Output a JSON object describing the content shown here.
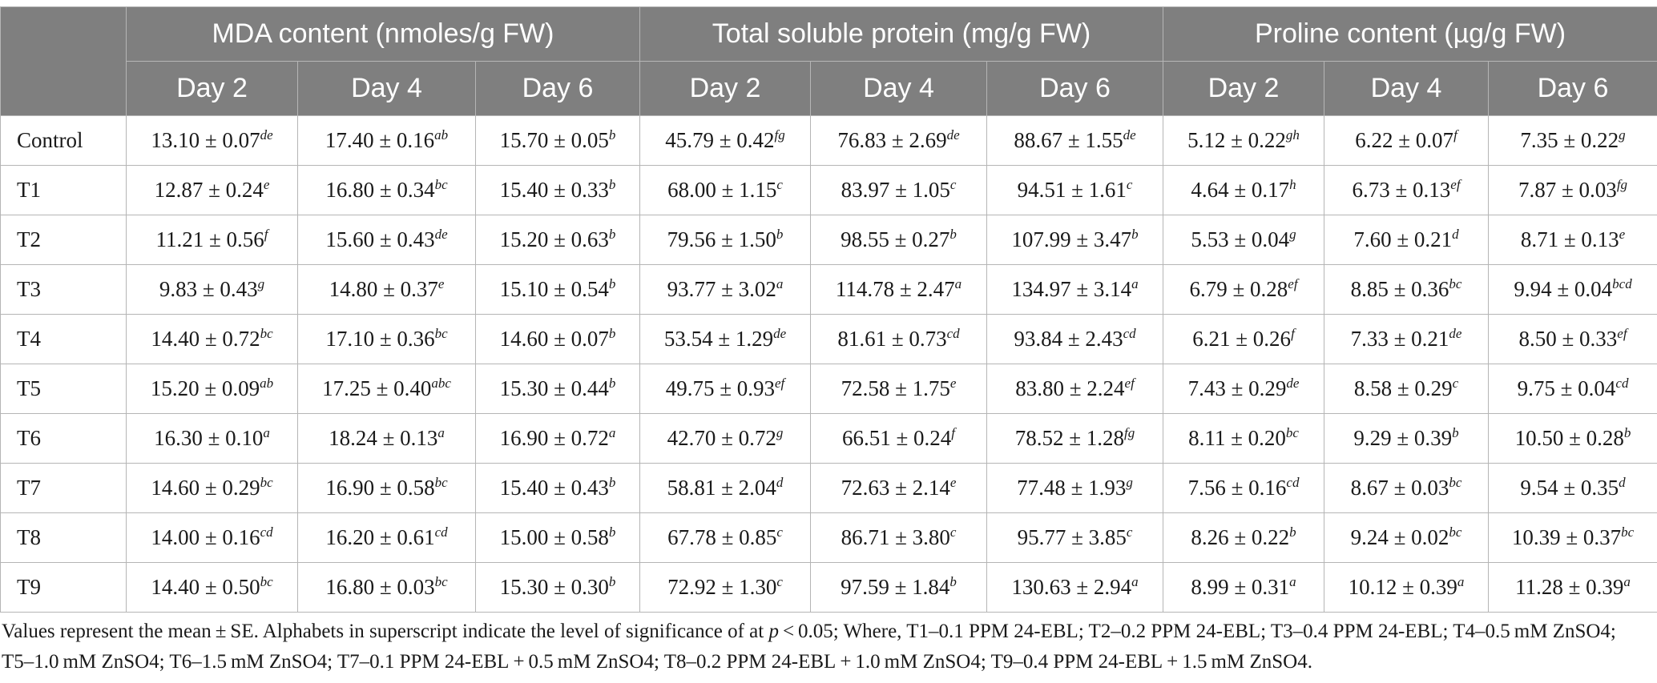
{
  "table": {
    "groups": [
      "MDA content (nmoles/g FW)",
      "Total soluble protein (mg/g FW)",
      "Proline content (µg/g FW)"
    ],
    "days": [
      "Day 2",
      "Day 4",
      "Day 6",
      "Day 2",
      "Day 4",
      "Day 6",
      "Day 2",
      "Day 4",
      "Day 6"
    ],
    "rows": [
      {
        "label": "Control",
        "cells": [
          {
            "v": "13.10 ± 0.07",
            "s": "de"
          },
          {
            "v": "17.40 ± 0.16",
            "s": "ab"
          },
          {
            "v": "15.70 ± 0.05",
            "s": "b"
          },
          {
            "v": "45.79 ± 0.42",
            "s": "fg"
          },
          {
            "v": "76.83 ± 2.69",
            "s": "de"
          },
          {
            "v": "88.67 ± 1.55",
            "s": "de"
          },
          {
            "v": "5.12 ± 0.22",
            "s": "gh"
          },
          {
            "v": "6.22 ± 0.07",
            "s": "f"
          },
          {
            "v": "7.35 ± 0.22",
            "s": "g"
          }
        ]
      },
      {
        "label": "T1",
        "cells": [
          {
            "v": "12.87 ± 0.24",
            "s": "e"
          },
          {
            "v": "16.80 ± 0.34",
            "s": "bc"
          },
          {
            "v": "15.40 ± 0.33",
            "s": "b"
          },
          {
            "v": "68.00 ± 1.15",
            "s": "c"
          },
          {
            "v": "83.97 ± 1.05",
            "s": "c"
          },
          {
            "v": "94.51 ± 1.61",
            "s": "c"
          },
          {
            "v": "4.64 ± 0.17",
            "s": "h"
          },
          {
            "v": "6.73 ± 0.13",
            "s": "ef"
          },
          {
            "v": "7.87 ± 0.03",
            "s": "fg"
          }
        ]
      },
      {
        "label": "T2",
        "cells": [
          {
            "v": "11.21 ± 0.56",
            "s": "f"
          },
          {
            "v": "15.60 ± 0.43",
            "s": "de"
          },
          {
            "v": "15.20 ± 0.63",
            "s": "b"
          },
          {
            "v": "79.56 ± 1.50",
            "s": "b"
          },
          {
            "v": "98.55 ± 0.27",
            "s": "b"
          },
          {
            "v": "107.99 ± 3.47",
            "s": "b"
          },
          {
            "v": "5.53 ± 0.04",
            "s": "g"
          },
          {
            "v": "7.60 ± 0.21",
            "s": "d"
          },
          {
            "v": "8.71 ± 0.13",
            "s": "e"
          }
        ]
      },
      {
        "label": "T3",
        "cells": [
          {
            "v": "9.83 ± 0.43",
            "s": "g"
          },
          {
            "v": "14.80 ± 0.37",
            "s": "e"
          },
          {
            "v": "15.10 ± 0.54",
            "s": "b"
          },
          {
            "v": "93.77 ± 3.02",
            "s": "a"
          },
          {
            "v": "114.78 ± 2.47",
            "s": "a"
          },
          {
            "v": "134.97 ± 3.14",
            "s": "a"
          },
          {
            "v": "6.79 ± 0.28",
            "s": "ef"
          },
          {
            "v": "8.85 ± 0.36",
            "s": "bc"
          },
          {
            "v": "9.94 ± 0.04",
            "s": "bcd"
          }
        ]
      },
      {
        "label": "T4",
        "cells": [
          {
            "v": "14.40 ± 0.72",
            "s": "bc"
          },
          {
            "v": "17.10 ± 0.36",
            "s": "bc"
          },
          {
            "v": "14.60 ± 0.07",
            "s": "b"
          },
          {
            "v": "53.54 ± 1.29",
            "s": "de"
          },
          {
            "v": "81.61 ± 0.73",
            "s": "cd"
          },
          {
            "v": "93.84 ± 2.43",
            "s": "cd"
          },
          {
            "v": "6.21 ± 0.26",
            "s": "f"
          },
          {
            "v": "7.33 ± 0.21",
            "s": "de"
          },
          {
            "v": "8.50 ± 0.33",
            "s": "ef"
          }
        ]
      },
      {
        "label": "T5",
        "cells": [
          {
            "v": "15.20 ± 0.09",
            "s": "ab"
          },
          {
            "v": "17.25 ± 0.40",
            "s": "abc"
          },
          {
            "v": "15.30 ± 0.44",
            "s": "b"
          },
          {
            "v": "49.75 ± 0.93",
            "s": "ef"
          },
          {
            "v": "72.58 ± 1.75",
            "s": "e"
          },
          {
            "v": "83.80 ± 2.24",
            "s": "ef"
          },
          {
            "v": "7.43 ± 0.29",
            "s": "de"
          },
          {
            "v": "8.58 ± 0.29",
            "s": "c"
          },
          {
            "v": "9.75 ± 0.04",
            "s": "cd"
          }
        ]
      },
      {
        "label": "T6",
        "cells": [
          {
            "v": "16.30 ± 0.10",
            "s": "a"
          },
          {
            "v": "18.24 ± 0.13",
            "s": "a"
          },
          {
            "v": "16.90 ± 0.72",
            "s": "a"
          },
          {
            "v": "42.70 ± 0.72",
            "s": "g"
          },
          {
            "v": "66.51 ± 0.24",
            "s": "f"
          },
          {
            "v": "78.52 ± 1.28",
            "s": "fg"
          },
          {
            "v": "8.11 ± 0.20",
            "s": "bc"
          },
          {
            "v": "9.29 ± 0.39",
            "s": "b"
          },
          {
            "v": "10.50 ± 0.28",
            "s": "b"
          }
        ]
      },
      {
        "label": "T7",
        "cells": [
          {
            "v": "14.60 ± 0.29",
            "s": "bc"
          },
          {
            "v": "16.90 ± 0.58",
            "s": "bc"
          },
          {
            "v": "15.40 ± 0.43",
            "s": "b"
          },
          {
            "v": "58.81 ± 2.04",
            "s": "d"
          },
          {
            "v": "72.63 ± 2.14",
            "s": "e"
          },
          {
            "v": "77.48 ± 1.93",
            "s": "g"
          },
          {
            "v": "7.56 ± 0.16",
            "s": "cd"
          },
          {
            "v": "8.67 ± 0.03",
            "s": "bc"
          },
          {
            "v": "9.54 ± 0.35",
            "s": "d"
          }
        ]
      },
      {
        "label": "T8",
        "cells": [
          {
            "v": "14.00 ± 0.16",
            "s": "cd"
          },
          {
            "v": "16.20 ± 0.61",
            "s": "cd"
          },
          {
            "v": "15.00 ± 0.58",
            "s": "b"
          },
          {
            "v": "67.78 ± 0.85",
            "s": "c"
          },
          {
            "v": "86.71 ± 3.80",
            "s": "c"
          },
          {
            "v": "95.77 ± 3.85",
            "s": "c"
          },
          {
            "v": "8.26 ± 0.22",
            "s": "b"
          },
          {
            "v": "9.24 ± 0.02",
            "s": "bc"
          },
          {
            "v": "10.39 ± 0.37",
            "s": "bc"
          }
        ]
      },
      {
        "label": "T9",
        "cells": [
          {
            "v": "14.40 ± 0.50",
            "s": "bc"
          },
          {
            "v": "16.80 ± 0.03",
            "s": "bc"
          },
          {
            "v": "15.30 ± 0.30",
            "s": "b"
          },
          {
            "v": "72.92 ± 1.30",
            "s": "c"
          },
          {
            "v": "97.59 ± 1.84",
            "s": "b"
          },
          {
            "v": "130.63 ± 2.94",
            "s": "a"
          },
          {
            "v": "8.99 ± 0.31",
            "s": "a"
          },
          {
            "v": "10.12 ± 0.39",
            "s": "a"
          },
          {
            "v": "11.28 ± 0.39",
            "s": "a"
          }
        ]
      }
    ]
  },
  "footnote": {
    "part1": "Values represent the mean ± SE. Alphabets in superscript indicate the level of significance of at ",
    "p_symbol": "p",
    "part2": " < 0.05; Where, T1–0.1 PPM 24-EBL; T2–0.2 PPM 24-EBL; T3–0.4 PPM 24-EBL; T4–0.5 mM ZnSO4; T5–1.0 mM ZnSO4; T6–1.5 mM ZnSO4; T7–0.1 PPM 24-EBL + 0.5 mM ZnSO4; T8–0.2 PPM 24-EBL + 1.0 mM ZnSO4; T9–0.4 PPM 24-EBL + 1.5 mM ZnSO4."
  }
}
